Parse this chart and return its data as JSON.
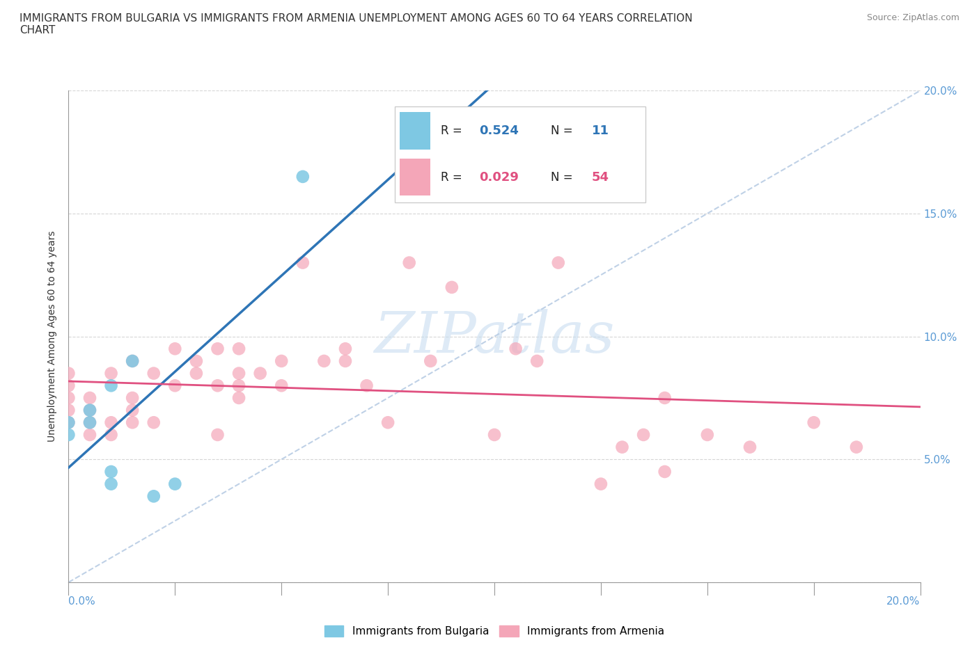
{
  "title": "IMMIGRANTS FROM BULGARIA VS IMMIGRANTS FROM ARMENIA UNEMPLOYMENT AMONG AGES 60 TO 64 YEARS CORRELATION\nCHART",
  "source_text": "Source: ZipAtlas.com",
  "ylabel": "Unemployment Among Ages 60 to 64 years",
  "xlim": [
    0.0,
    0.2
  ],
  "ylim": [
    0.0,
    0.2
  ],
  "x_ticks": [
    0.0,
    0.025,
    0.05,
    0.075,
    0.1,
    0.125,
    0.15,
    0.175,
    0.2
  ],
  "y_ticks": [
    0.0,
    0.05,
    0.1,
    0.15,
    0.2
  ],
  "bulgaria_color": "#7ec8e3",
  "armenia_color": "#f4a6b8",
  "bulgaria_line_color": "#2e75b6",
  "armenia_line_color": "#e05080",
  "diag_color": "#b8cce4",
  "watermark_color": "#c8ddf0",
  "bulgaria_R": 0.524,
  "bulgaria_N": 11,
  "armenia_R": 0.029,
  "armenia_N": 54,
  "legend_label_bulgaria": "Immigrants from Bulgaria",
  "legend_label_armenia": "Immigrants from Armenia",
  "bulgaria_x": [
    0.0,
    0.0,
    0.005,
    0.005,
    0.01,
    0.01,
    0.01,
    0.015,
    0.02,
    0.025,
    0.055
  ],
  "bulgaria_y": [
    0.06,
    0.065,
    0.065,
    0.07,
    0.04,
    0.045,
    0.08,
    0.09,
    0.035,
    0.04,
    0.165
  ],
  "armenia_x": [
    0.0,
    0.0,
    0.0,
    0.0,
    0.0,
    0.005,
    0.005,
    0.005,
    0.005,
    0.01,
    0.01,
    0.01,
    0.015,
    0.015,
    0.015,
    0.015,
    0.02,
    0.02,
    0.025,
    0.025,
    0.03,
    0.03,
    0.035,
    0.035,
    0.035,
    0.04,
    0.04,
    0.04,
    0.04,
    0.045,
    0.05,
    0.05,
    0.055,
    0.06,
    0.065,
    0.065,
    0.07,
    0.075,
    0.08,
    0.085,
    0.09,
    0.1,
    0.105,
    0.11,
    0.115,
    0.125,
    0.13,
    0.135,
    0.14,
    0.14,
    0.15,
    0.16,
    0.175,
    0.185
  ],
  "armenia_y": [
    0.065,
    0.07,
    0.075,
    0.08,
    0.085,
    0.06,
    0.065,
    0.07,
    0.075,
    0.06,
    0.065,
    0.085,
    0.065,
    0.07,
    0.075,
    0.09,
    0.065,
    0.085,
    0.08,
    0.095,
    0.085,
    0.09,
    0.06,
    0.08,
    0.095,
    0.075,
    0.08,
    0.085,
    0.095,
    0.085,
    0.08,
    0.09,
    0.13,
    0.09,
    0.09,
    0.095,
    0.08,
    0.065,
    0.13,
    0.09,
    0.12,
    0.06,
    0.095,
    0.09,
    0.13,
    0.04,
    0.055,
    0.06,
    0.045,
    0.075,
    0.06,
    0.055,
    0.065,
    0.055
  ]
}
